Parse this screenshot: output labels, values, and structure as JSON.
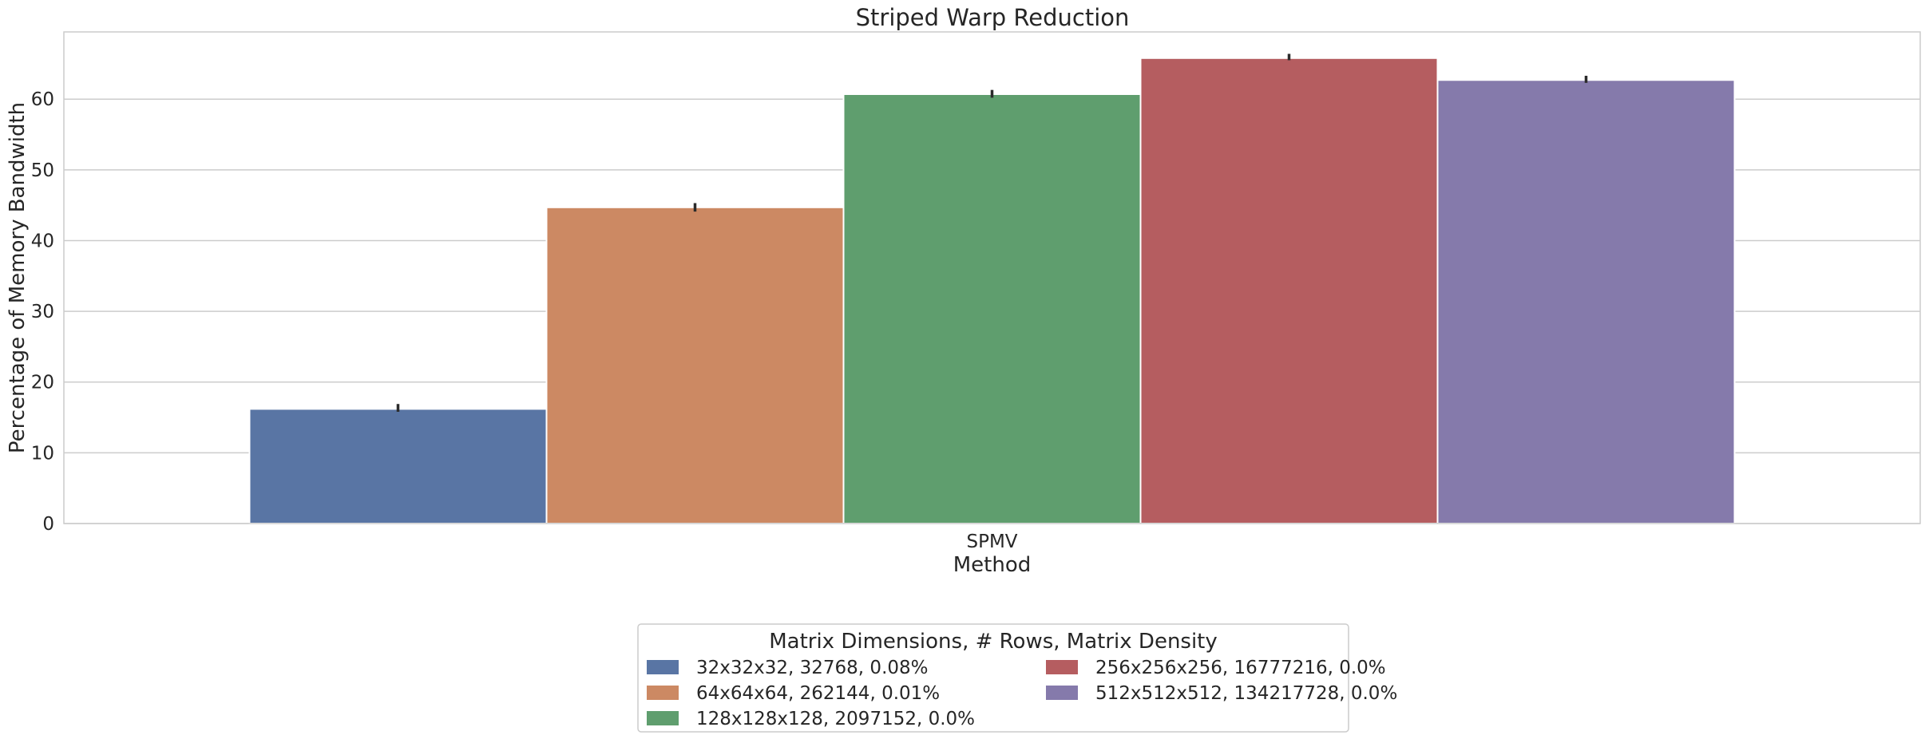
{
  "chart_data": {
    "type": "bar",
    "title": "Striped Warp Reduction",
    "xlabel": "Method",
    "ylabel": "Percentage of Memory Bandwidth",
    "categories": [
      "SPMV"
    ],
    "ylim": [
      0,
      69.5
    ],
    "yticks": [
      0,
      10,
      20,
      30,
      40,
      50,
      60
    ],
    "grid": true,
    "legend": {
      "title": "Matrix Dimensions, # Rows, Matrix Density",
      "placement": "bottom-center",
      "columns": 2
    },
    "series": [
      {
        "name": "32x32x32, 32768, 0.08%",
        "values": [
          16.2
        ],
        "error": [
          [
            15.8,
            16.9
          ]
        ],
        "color": "#5975a4"
      },
      {
        "name": "64x64x64, 262144, 0.01%",
        "values": [
          44.7
        ],
        "error": [
          [
            44.1,
            45.3
          ]
        ],
        "color": "#cc8963"
      },
      {
        "name": "128x128x128, 2097152, 0.0%",
        "values": [
          60.7
        ],
        "error": [
          [
            60.2,
            61.3
          ]
        ],
        "color": "#5f9e6e"
      },
      {
        "name": "256x256x256, 16777216, 0.0%",
        "values": [
          65.8
        ],
        "error": [
          [
            65.5,
            66.4
          ]
        ],
        "color": "#b55d60"
      },
      {
        "name": "512x512x512, 134217728, 0.0%",
        "values": [
          62.7
        ],
        "error": [
          [
            62.3,
            63.3
          ]
        ],
        "color": "#857aab"
      }
    ]
  }
}
